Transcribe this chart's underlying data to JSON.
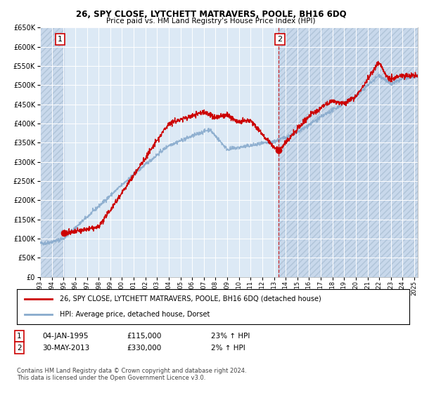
{
  "title": "26, SPY CLOSE, LYTCHETT MATRAVERS, POOLE, BH16 6DQ",
  "subtitle": "Price paid vs. HM Land Registry's House Price Index (HPI)",
  "legend_line1": "26, SPY CLOSE, LYTCHETT MATRAVERS, POOLE, BH16 6DQ (detached house)",
  "legend_line2": "HPI: Average price, detached house, Dorset",
  "annotation1_date": "04-JAN-1995",
  "annotation1_price": "£115,000",
  "annotation1_hpi": "23% ↑ HPI",
  "annotation2_date": "30-MAY-2013",
  "annotation2_price": "£330,000",
  "annotation2_hpi": "2% ↑ HPI",
  "footnote": "Contains HM Land Registry data © Crown copyright and database right 2024.\nThis data is licensed under the Open Government Licence v3.0.",
  "plot_bg_color": "#dce9f5",
  "grid_color": "#ffffff",
  "red_line_color": "#cc0000",
  "blue_line_color": "#88aacc",
  "ylim": [
    0,
    650000
  ],
  "yticks": [
    0,
    50000,
    100000,
    150000,
    200000,
    250000,
    300000,
    350000,
    400000,
    450000,
    500000,
    550000,
    600000,
    650000
  ],
  "sale1_x": 1995.02,
  "sale1_y": 115000,
  "sale2_x": 2013.42,
  "sale2_y": 330000,
  "xlim_min": 1993.0,
  "xlim_max": 2025.3
}
